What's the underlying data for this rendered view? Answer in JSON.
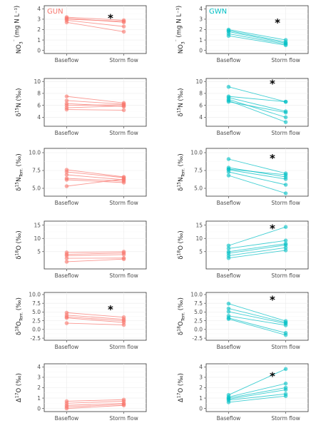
{
  "colors": {
    "GUN": "#F8766D",
    "GWN": "#00BFC4"
  },
  "chart_data": [
    {
      "type": "line",
      "group": "GUN",
      "panel_label": "GUN",
      "ylabel": "NO3⁻ (mg N L⁻¹)",
      "categories": [
        "Baseflow",
        "Storm flow"
      ],
      "ylim": [
        -0.3,
        4.3
      ],
      "yticks": [
        0,
        1,
        2,
        3,
        4
      ],
      "significant": true,
      "series": [
        {
          "values": [
            3.2,
            2.9
          ]
        },
        {
          "values": [
            3.1,
            2.7
          ]
        },
        {
          "values": [
            3.0,
            2.8
          ]
        },
        {
          "values": [
            2.9,
            2.3
          ]
        },
        {
          "values": [
            2.7,
            1.8
          ]
        }
      ]
    },
    {
      "type": "line",
      "group": "GWN",
      "panel_label": "GWN",
      "ylabel": "NO3⁻ (mg N L⁻¹)",
      "categories": [
        "Baseflow",
        "Storm flow"
      ],
      "ylim": [
        -0.3,
        4.3
      ],
      "yticks": [
        0,
        1,
        2,
        3,
        4
      ],
      "significant": true,
      "series": [
        {
          "values": [
            2.0,
            1.0
          ]
        },
        {
          "values": [
            1.9,
            0.8
          ]
        },
        {
          "values": [
            1.8,
            0.7
          ]
        },
        {
          "values": [
            1.6,
            0.6
          ]
        },
        {
          "values": [
            1.4,
            0.5
          ]
        }
      ]
    },
    {
      "type": "line",
      "group": "GUN",
      "panel_label": "",
      "ylabel": "δ15N (‰)",
      "categories": [
        "Baseflow",
        "Storm flow"
      ],
      "ylim": [
        2.5,
        10.5
      ],
      "yticks": [
        4,
        6,
        8,
        10
      ],
      "significant": false,
      "series": [
        {
          "values": [
            7.5,
            6.4
          ]
        },
        {
          "values": [
            6.8,
            6.2
          ]
        },
        {
          "values": [
            6.3,
            5.8
          ]
        },
        {
          "values": [
            6.0,
            6.1
          ]
        },
        {
          "values": [
            5.6,
            5.9
          ]
        },
        {
          "values": [
            5.3,
            5.2
          ]
        }
      ]
    },
    {
      "type": "line",
      "group": "GWN",
      "panel_label": "",
      "ylabel": "δ15N (‰)",
      "categories": [
        "Baseflow",
        "Storm flow"
      ],
      "ylim": [
        2.5,
        10.5
      ],
      "yticks": [
        4,
        6,
        8,
        10
      ],
      "significant": true,
      "series": [
        {
          "values": [
            9.1,
            6.6
          ]
        },
        {
          "values": [
            7.5,
            6.6
          ]
        },
        {
          "values": [
            7.3,
            5.0
          ]
        },
        {
          "values": [
            7.0,
            4.0
          ]
        },
        {
          "values": [
            6.8,
            3.2
          ]
        },
        {
          "values": [
            6.6,
            4.8
          ]
        }
      ]
    },
    {
      "type": "line",
      "group": "GUN",
      "panel_label": "",
      "ylabel": "δ15N_Terr. (‰)",
      "categories": [
        "Baseflow",
        "Storm flow"
      ],
      "ylim": [
        3.9,
        10.6
      ],
      "yticks": [
        5.0,
        7.5,
        10.0
      ],
      "significant": false,
      "series": [
        {
          "values": [
            7.6,
            6.6
          ]
        },
        {
          "values": [
            7.3,
            6.5
          ]
        },
        {
          "values": [
            6.9,
            6.2
          ]
        },
        {
          "values": [
            6.4,
            6.0
          ]
        },
        {
          "values": [
            6.2,
            5.8
          ]
        },
        {
          "values": [
            5.3,
            6.3
          ]
        }
      ]
    },
    {
      "type": "line",
      "group": "GWN",
      "panel_label": "",
      "ylabel": "δ15N_Terr. (‰)",
      "categories": [
        "Baseflow",
        "Storm flow"
      ],
      "ylim": [
        3.9,
        10.6
      ],
      "yticks": [
        5.0,
        7.5,
        10.0
      ],
      "significant": true,
      "series": [
        {
          "values": [
            9.1,
            7.1
          ]
        },
        {
          "values": [
            7.9,
            6.6
          ]
        },
        {
          "values": [
            7.6,
            6.3
          ]
        },
        {
          "values": [
            7.3,
            5.5
          ]
        },
        {
          "values": [
            6.8,
            4.3
          ]
        },
        {
          "values": [
            7.7,
            6.9
          ]
        }
      ]
    },
    {
      "type": "line",
      "group": "GUN",
      "panel_label": "",
      "ylabel": "δ18O (‰)",
      "categories": [
        "Baseflow",
        "Storm flow"
      ],
      "ylim": [
        -1.5,
        16.5
      ],
      "yticks": [
        5,
        10,
        15
      ],
      "significant": false,
      "series": [
        {
          "values": [
            4.7,
            5.0
          ]
        },
        {
          "values": [
            4.0,
            4.5
          ]
        },
        {
          "values": [
            3.5,
            3.9
          ]
        },
        {
          "values": [
            2.5,
            2.6
          ]
        },
        {
          "values": [
            1.2,
            2.2
          ]
        }
      ]
    },
    {
      "type": "line",
      "group": "GWN",
      "panel_label": "",
      "ylabel": "δ18O (‰)",
      "categories": [
        "Baseflow",
        "Storm flow"
      ],
      "ylim": [
        -1.5,
        16.5
      ],
      "yticks": [
        5,
        10,
        15
      ],
      "significant": true,
      "series": [
        {
          "values": [
            7.3,
            14.3
          ]
        },
        {
          "values": [
            6.2,
            9.2
          ]
        },
        {
          "values": [
            5.0,
            8.0
          ]
        },
        {
          "values": [
            4.4,
            7.5
          ]
        },
        {
          "values": [
            3.5,
            6.5
          ]
        },
        {
          "values": [
            2.6,
            5.5
          ]
        }
      ]
    },
    {
      "type": "line",
      "group": "GUN",
      "panel_label": "",
      "ylabel": "δ18O_Terr. (‰)",
      "categories": [
        "Baseflow",
        "Storm flow"
      ],
      "ylim": [
        -3.1,
        10.6
      ],
      "yticks": [
        -2.5,
        0.0,
        2.5,
        5.0,
        7.5,
        10.0
      ],
      "significant": true,
      "series": [
        {
          "values": [
            4.8,
            3.5
          ]
        },
        {
          "values": [
            4.1,
            2.9
          ]
        },
        {
          "values": [
            3.6,
            2.5
          ]
        },
        {
          "values": [
            3.3,
            2.0
          ]
        },
        {
          "values": [
            1.8,
            1.3
          ]
        }
      ]
    },
    {
      "type": "line",
      "group": "GWN",
      "panel_label": "",
      "ylabel": "δ18O_Terr. (‰)",
      "categories": [
        "Baseflow",
        "Storm flow"
      ],
      "ylim": [
        -3.1,
        10.6
      ],
      "yticks": [
        -2.5,
        0.0,
        2.5,
        5.0,
        7.5,
        10.0
      ],
      "significant": true,
      "series": [
        {
          "values": [
            7.4,
            2.4
          ]
        },
        {
          "values": [
            6.0,
            2.0
          ]
        },
        {
          "values": [
            5.1,
            1.7
          ]
        },
        {
          "values": [
            3.9,
            1.2
          ]
        },
        {
          "values": [
            3.3,
            -1.0
          ]
        },
        {
          "values": [
            3.0,
            -1.6
          ]
        }
      ]
    },
    {
      "type": "line",
      "group": "GUN",
      "panel_label": "",
      "ylabel": "Δ17O (‰)",
      "categories": [
        "Baseflow",
        "Storm flow"
      ],
      "ylim": [
        -0.3,
        4.3
      ],
      "yticks": [
        0,
        1,
        2,
        3,
        4
      ],
      "significant": false,
      "series": [
        {
          "values": [
            0.7,
            0.85
          ]
        },
        {
          "values": [
            0.5,
            0.7
          ]
        },
        {
          "values": [
            0.3,
            0.5
          ]
        },
        {
          "values": [
            0.15,
            0.4
          ]
        },
        {
          "values": [
            0.0,
            0.3
          ]
        }
      ]
    },
    {
      "type": "line",
      "group": "GWN",
      "panel_label": "",
      "ylabel": "Δ17O (‰)",
      "categories": [
        "Baseflow",
        "Storm flow"
      ],
      "ylim": [
        -0.3,
        4.3
      ],
      "yticks": [
        0,
        1,
        2,
        3,
        4
      ],
      "significant": true,
      "series": [
        {
          "values": [
            1.3,
            3.8
          ]
        },
        {
          "values": [
            1.1,
            2.4
          ]
        },
        {
          "values": [
            1.0,
            2.0
          ]
        },
        {
          "values": [
            0.9,
            1.8
          ]
        },
        {
          "values": [
            0.8,
            1.4
          ]
        },
        {
          "values": [
            0.6,
            1.2
          ]
        }
      ]
    }
  ]
}
